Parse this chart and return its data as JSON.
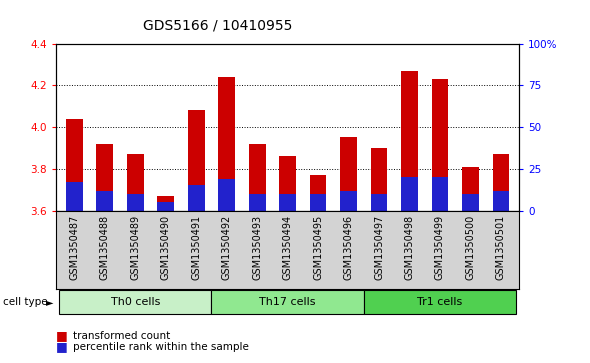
{
  "title": "GDS5166 / 10410955",
  "samples": [
    "GSM1350487",
    "GSM1350488",
    "GSM1350489",
    "GSM1350490",
    "GSM1350491",
    "GSM1350492",
    "GSM1350493",
    "GSM1350494",
    "GSM1350495",
    "GSM1350496",
    "GSM1350497",
    "GSM1350498",
    "GSM1350499",
    "GSM1350500",
    "GSM1350501"
  ],
  "red_values": [
    4.04,
    3.92,
    3.87,
    3.67,
    4.08,
    4.24,
    3.92,
    3.86,
    3.77,
    3.95,
    3.9,
    4.27,
    4.23,
    3.81,
    3.87
  ],
  "percentile_values": [
    17,
    12,
    10,
    5,
    15,
    19,
    10,
    10,
    10,
    12,
    10,
    20,
    20,
    10,
    12
  ],
  "ylim_left": [
    3.6,
    4.4
  ],
  "ylim_right": [
    0,
    100
  ],
  "yticks_left": [
    3.6,
    3.8,
    4.0,
    4.2,
    4.4
  ],
  "yticks_right": [
    0,
    25,
    50,
    75,
    100
  ],
  "ytick_labels_right": [
    "0",
    "25",
    "50",
    "75",
    "100%"
  ],
  "groups": [
    {
      "label": "Th0 cells",
      "start": 0,
      "end": 5,
      "color": "#c8f0c8"
    },
    {
      "label": "Th17 cells",
      "start": 5,
      "end": 10,
      "color": "#90e890"
    },
    {
      "label": "Tr1 cells",
      "start": 10,
      "end": 15,
      "color": "#50d050"
    }
  ],
  "bar_color_red": "#cc0000",
  "bar_color_blue": "#2222cc",
  "bar_width": 0.55,
  "bg_color": "#d3d3d3",
  "plot_bg": "#ffffff",
  "cell_type_label": "cell type",
  "legend_red": "transformed count",
  "legend_blue": "percentile rank within the sample",
  "base": 3.6,
  "title_fontsize": 10,
  "tick_fontsize": 7.5,
  "label_fontsize": 7,
  "group_fontsize": 8
}
